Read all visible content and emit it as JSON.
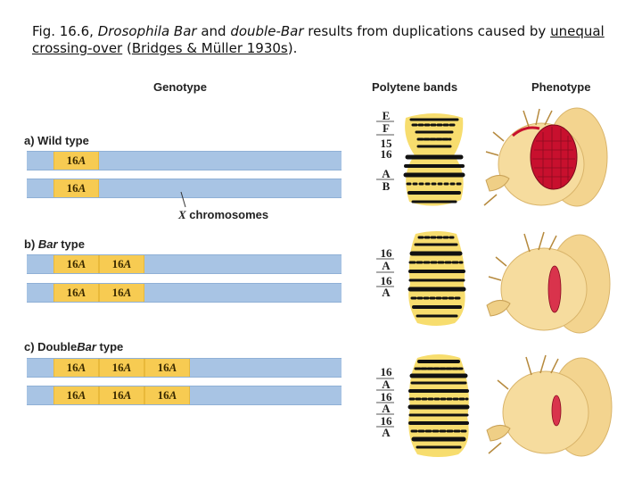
{
  "caption": {
    "prefix": "Fig. 16.6, ",
    "species": "Drosophila Bar",
    "and": " and ",
    "double_bar": "double-Bar",
    "middle": " results from duplications caused by ",
    "link1": "unequal crossing-over",
    "paren_open": " (",
    "link2": "Bridges & Müller 1930s",
    "end": ")."
  },
  "headers": {
    "genotype": "Genotype",
    "polytene": "Polytene bands",
    "phenotype": "Phenotype"
  },
  "sections": [
    {
      "label": "a) Wild type",
      "segments": 1
    },
    {
      "label_pre": "b) ",
      "label_italic": "Bar",
      "label_post": " type",
      "segments": 2
    },
    {
      "label_pre": "c) Double",
      "label_italic": "Bar",
      "label_post": " type",
      "segments": 3
    }
  ],
  "segment_label": {
    "num": "16",
    "letter": "A"
  },
  "x_chromosomes": {
    "italic": "X",
    "rest": " chromosomes"
  },
  "band_labels": {
    "wild": [
      "E",
      "F",
      "15",
      "16",
      "A",
      "B"
    ],
    "bar": [
      "16",
      "A",
      "16",
      "A"
    ],
    "double_bar": [
      "16",
      "A",
      "16",
      "A",
      "16",
      "A"
    ]
  },
  "colors": {
    "chromosome": "#a8c4e4",
    "segment": "#f7cb52",
    "eye_red": "#c8102e",
    "fly_body": "#f3d48f"
  }
}
